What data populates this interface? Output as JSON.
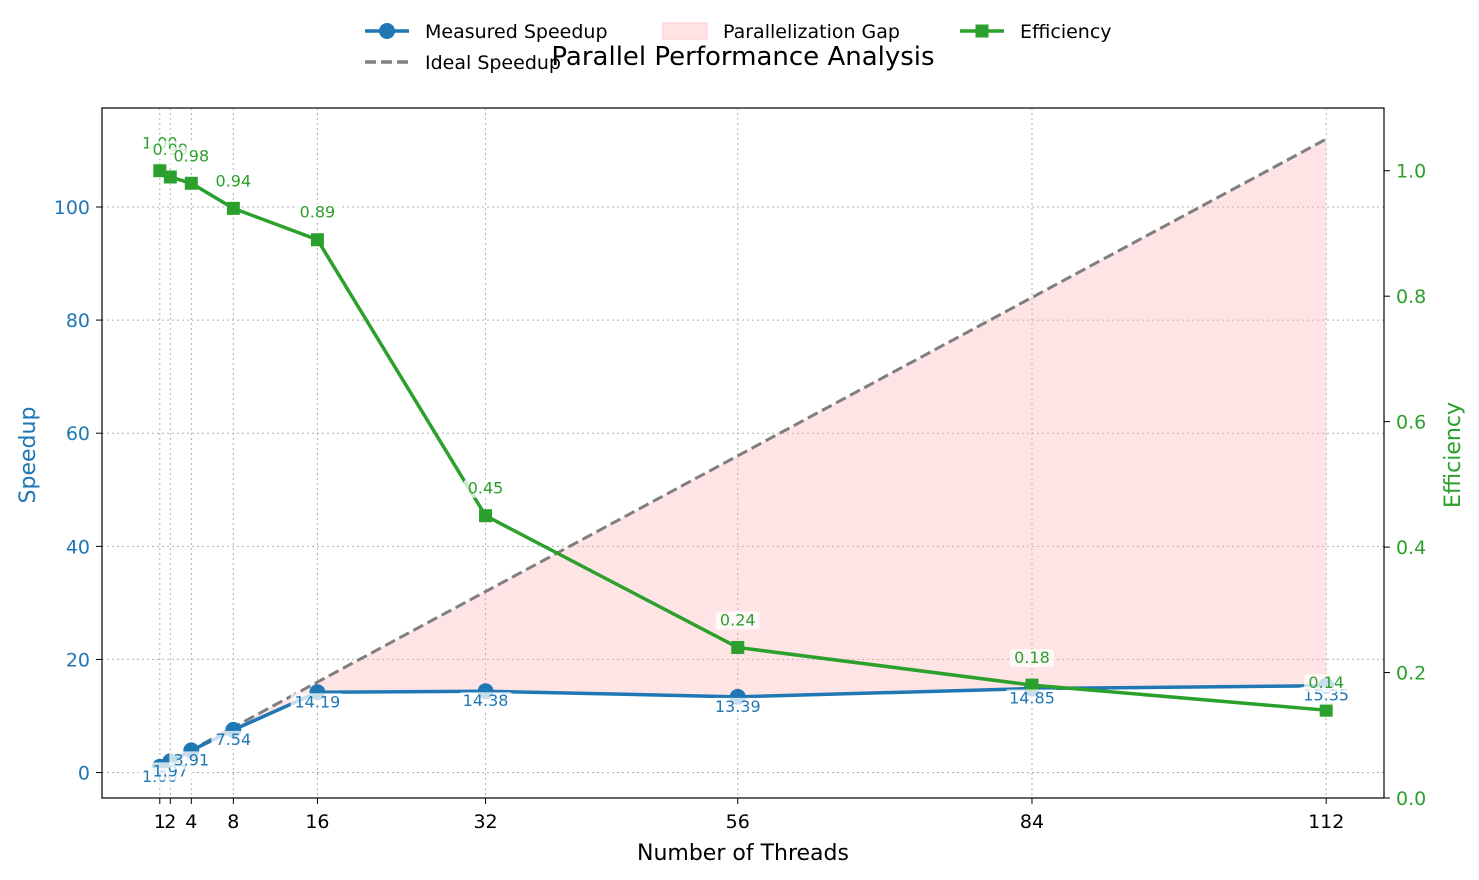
{
  "chart_data": {
    "type": "line",
    "title": "Parallel Performance Analysis",
    "xlabel": "Number of Threads",
    "ylabel_left": "Speedup",
    "ylabel_right": "Efficiency",
    "x": [
      1,
      2,
      4,
      8,
      16,
      32,
      56,
      84,
      112
    ],
    "x_ticks": [
      "1",
      "2",
      "4",
      "8",
      "16",
      "32",
      "56",
      "84",
      "112"
    ],
    "xlim": [
      -4.5,
      117.5
    ],
    "ylim_left": [
      -4.5,
      117.5
    ],
    "ylim_right": [
      0.0,
      1.1
    ],
    "yticks_left": [
      "0",
      "20",
      "40",
      "60",
      "80",
      "100"
    ],
    "yticks_right": [
      "0.0",
      "0.2",
      "0.4",
      "0.6",
      "0.8",
      "1.0"
    ],
    "grid": true,
    "legend_placement": "top-center",
    "series": [
      {
        "name": "Measured Speedup",
        "axis": "left",
        "color": "#1f77b4",
        "marker": "circle",
        "values": [
          1.0,
          1.97,
          3.91,
          7.54,
          14.19,
          14.38,
          13.39,
          14.85,
          15.35
        ],
        "labels": [
          "1.00",
          "1.97",
          "3.91",
          "7.54",
          "14.19",
          "14.38",
          "13.39",
          "14.85",
          "15.35"
        ]
      },
      {
        "name": "Ideal Speedup",
        "axis": "left",
        "color": "#7f7f7f",
        "style": "dashed",
        "values": [
          1,
          2,
          4,
          8,
          16,
          32,
          56,
          84,
          112
        ]
      },
      {
        "name": "Efficiency",
        "axis": "right",
        "color": "#2ca02c",
        "marker": "square",
        "values": [
          1.0,
          0.99,
          0.98,
          0.94,
          0.89,
          0.45,
          0.24,
          0.18,
          0.14
        ],
        "labels": [
          "1.00",
          "0.99",
          "0.98",
          "0.94",
          "0.89",
          "0.45",
          "0.24",
          "0.18",
          "0.14"
        ]
      }
    ],
    "fill": {
      "name": "Parallelization Gap",
      "color": "#ffb3b8",
      "between": [
        "Measured Speedup",
        "Ideal Speedup"
      ]
    },
    "legend": [
      {
        "label": "Measured Speedup",
        "kind": "line-circle",
        "color": "#1f77b4"
      },
      {
        "label": "Parallelization Gap",
        "kind": "patch",
        "color": "#ffe3e5"
      },
      {
        "label": "Efficiency",
        "kind": "line-square",
        "color": "#2ca02c"
      },
      {
        "label": "Ideal Speedup",
        "kind": "dashed",
        "color": "#7f7f7f"
      }
    ]
  }
}
